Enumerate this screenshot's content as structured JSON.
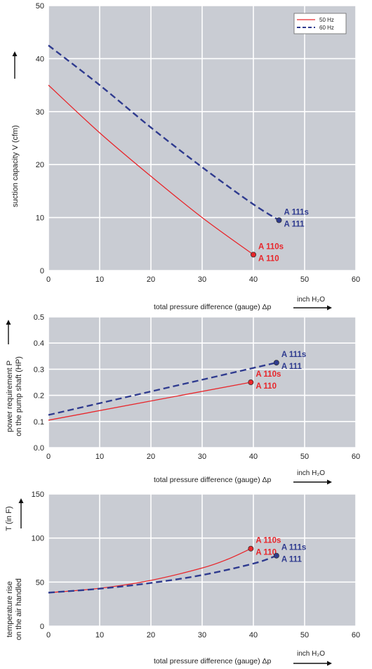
{
  "legend": [
    {
      "name": "50 Hz",
      "color": "#e8262b",
      "dash": false
    },
    {
      "name": "60 Hz",
      "color": "#2f3b8f",
      "dash": true
    }
  ],
  "chart_data": [
    {
      "type": "line",
      "ylabel": "suction capacity V (cfm)",
      "xlabel": "total pressure difference (gauge)  Δp",
      "unit": "inch H₂O",
      "xlim": [
        0,
        60
      ],
      "ylim": [
        0,
        50
      ],
      "xticks": [
        0,
        10,
        20,
        30,
        40,
        50,
        60
      ],
      "yticks": [
        0,
        10,
        20,
        30,
        40,
        50
      ],
      "grid": true,
      "legend_position": "top-right",
      "series": [
        {
          "name": "50 Hz",
          "color": "#e8262b",
          "dash": false,
          "x": [
            0,
            10,
            20,
            30,
            40
          ],
          "y": [
            35,
            26,
            17.8,
            10,
            3
          ],
          "label_lines": [
            "A 110s",
            "A 110"
          ]
        },
        {
          "name": "60 Hz",
          "color": "#2f3b8f",
          "dash": true,
          "x": [
            0,
            10,
            20,
            30,
            40,
            45
          ],
          "y": [
            42.5,
            35,
            27,
            19.5,
            12.5,
            9.5
          ],
          "label_lines": [
            "A 111s",
            "A 111"
          ]
        }
      ]
    },
    {
      "type": "line",
      "ylabel_lines": [
        "power requirement P",
        "on the pump shaft (HP)"
      ],
      "xlabel": "total pressure difference (gauge)  Δp",
      "unit": "inch H₂O",
      "xlim": [
        0,
        60
      ],
      "ylim": [
        0,
        0.5
      ],
      "xticks": [
        0,
        10,
        20,
        30,
        40,
        50,
        60
      ],
      "yticks": [
        0.0,
        0.1,
        0.2,
        0.3,
        0.4,
        0.5
      ],
      "ytick_labels": [
        "0.0",
        "0.1",
        "0.2",
        "0.3",
        "0.4",
        "0.5"
      ],
      "grid": true,
      "series": [
        {
          "name": "50 Hz",
          "color": "#e8262b",
          "dash": false,
          "x": [
            0,
            39.5
          ],
          "y": [
            0.105,
            0.25
          ],
          "label_lines": [
            "A 110s",
            "A 110"
          ]
        },
        {
          "name": "60 Hz",
          "color": "#2f3b8f",
          "dash": true,
          "x": [
            0,
            44.5
          ],
          "y": [
            0.125,
            0.325
          ],
          "label_lines": [
            "A 111s",
            "A 111"
          ]
        }
      ]
    },
    {
      "type": "line",
      "ylabel_lines": [
        "temperature rise",
        "on the air handled"
      ],
      "ylabel_extra": "T   (in F)",
      "xlabel": "total pressure difference (gauge)  Δp",
      "unit": "inch H₂O",
      "xlim": [
        0,
        60
      ],
      "ylim": [
        0,
        150
      ],
      "xticks": [
        0,
        10,
        20,
        30,
        40,
        50,
        60
      ],
      "yticks": [
        0,
        50,
        100,
        150
      ],
      "grid": true,
      "series": [
        {
          "name": "50 Hz",
          "color": "#e8262b",
          "dash": false,
          "x": [
            0,
            10,
            20,
            30,
            35,
            39.5
          ],
          "y": [
            38,
            43,
            52,
            66,
            76,
            88
          ],
          "label_lines": [
            "A 110s",
            "A 110"
          ]
        },
        {
          "name": "60 Hz",
          "color": "#2f3b8f",
          "dash": true,
          "x": [
            0,
            10,
            20,
            30,
            40,
            44.5
          ],
          "y": [
            38,
            42.5,
            49,
            58,
            71,
            80
          ],
          "label_lines": [
            "A 111s",
            "A 111"
          ]
        }
      ]
    }
  ]
}
